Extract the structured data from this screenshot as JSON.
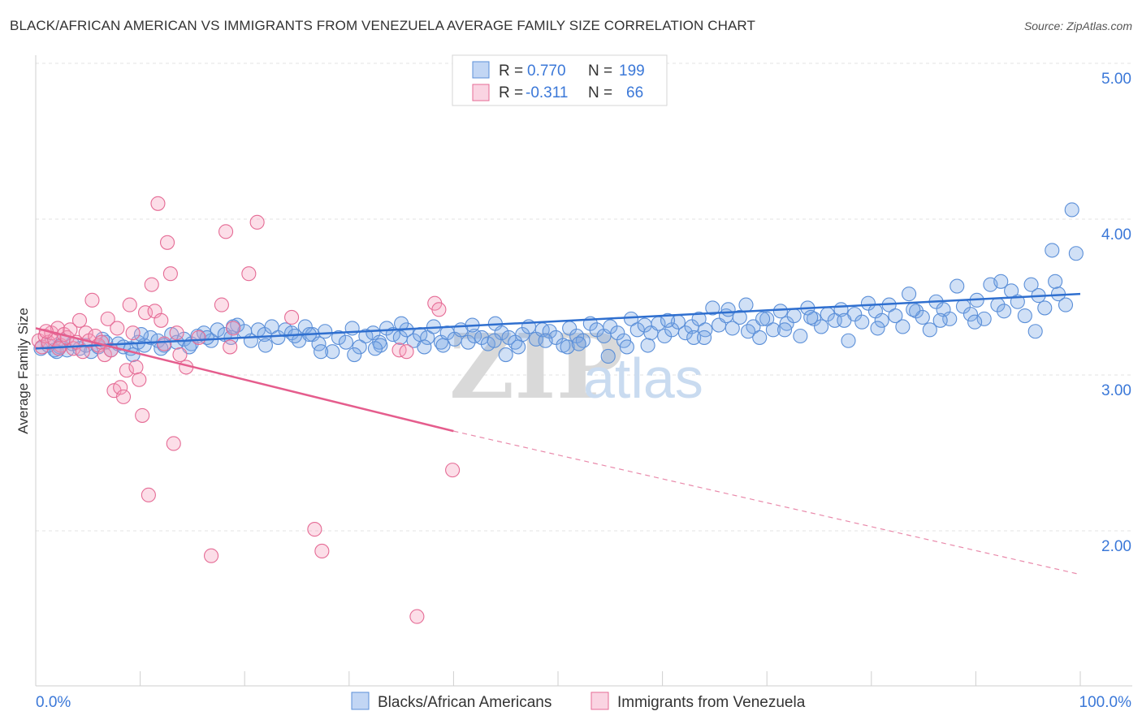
{
  "title": "BLACK/AFRICAN AMERICAN VS IMMIGRANTS FROM VENEZUELA AVERAGE FAMILY SIZE CORRELATION CHART",
  "source": "Source: ZipAtlas.com",
  "watermark": {
    "zip": "ZIP",
    "atlas": "atlas"
  },
  "legend_top": [
    {
      "r_label": "R =",
      "r_value": "0.770",
      "n_label": "N =",
      "n_value": "199"
    },
    {
      "r_label": "R =",
      "r_value": "-0.311",
      "n_label": "N =",
      "n_value": "66"
    }
  ],
  "chart_data": {
    "type": "scatter",
    "title": "BLACK/AFRICAN AMERICAN VS IMMIGRANTS FROM VENEZUELA AVERAGE FAMILY SIZE CORRELATION CHART",
    "xlabel": "",
    "ylabel": "Average Family Size",
    "x_tick_labels": [
      "0.0%",
      "100.0%"
    ],
    "y_tick_labels": [
      "2.00",
      "3.00",
      "4.00",
      "5.00"
    ],
    "xlim": [
      0,
      100
    ],
    "ylim": [
      1.05,
      5.1
    ],
    "grid": "horizontal dashed",
    "legend_position": "top-center",
    "colors": {
      "blue": "#5b8fd8",
      "blue_fill": "rgba(120,165,230,0.35)",
      "pink": "#e56b95",
      "pink_fill": "rgba(245,160,190,0.35)"
    },
    "series": [
      {
        "name": "Blacks/African Americans",
        "color": "#3a7bd5",
        "trend": {
          "x": [
            0,
            100
          ],
          "y": [
            3.17,
            3.52
          ]
        },
        "points": [
          [
            0.5,
            3.17
          ],
          [
            1.2,
            3.19
          ],
          [
            1.8,
            3.16
          ],
          [
            2.3,
            3.18
          ],
          [
            3,
            3.16
          ],
          [
            3.5,
            3.2
          ],
          [
            4.2,
            3.17
          ],
          [
            4.8,
            3.19
          ],
          [
            5.3,
            3.15
          ],
          [
            6,
            3.18
          ],
          [
            6.7,
            3.21
          ],
          [
            7.2,
            3.16
          ],
          [
            7.9,
            3.2
          ],
          [
            8.4,
            3.18
          ],
          [
            9.1,
            3.17
          ],
          [
            9.8,
            3.21
          ],
          [
            10.4,
            3.19
          ],
          [
            11,
            3.24
          ],
          [
            11.7,
            3.22
          ],
          [
            12.3,
            3.19
          ],
          [
            13,
            3.26
          ],
          [
            13.5,
            3.21
          ],
          [
            14.2,
            3.23
          ],
          [
            14.9,
            3.2
          ],
          [
            15.5,
            3.25
          ],
          [
            16.1,
            3.27
          ],
          [
            16.8,
            3.22
          ],
          [
            17.4,
            3.29
          ],
          [
            18.1,
            3.26
          ],
          [
            18.7,
            3.24
          ],
          [
            19.3,
            3.32
          ],
          [
            20,
            3.28
          ],
          [
            20.6,
            3.22
          ],
          [
            21.3,
            3.29
          ],
          [
            21.9,
            3.26
          ],
          [
            22.6,
            3.31
          ],
          [
            23.2,
            3.24
          ],
          [
            23.9,
            3.29
          ],
          [
            24.5,
            3.27
          ],
          [
            25.2,
            3.22
          ],
          [
            25.8,
            3.31
          ],
          [
            26.5,
            3.26
          ],
          [
            27.1,
            3.2
          ],
          [
            27.7,
            3.28
          ],
          [
            28.4,
            3.15
          ],
          [
            29,
            3.24
          ],
          [
            29.7,
            3.21
          ],
          [
            30.3,
            3.3
          ],
          [
            31,
            3.18
          ],
          [
            31.6,
            3.25
          ],
          [
            32.3,
            3.27
          ],
          [
            32.9,
            3.21
          ],
          [
            33.6,
            3.3
          ],
          [
            34.2,
            3.26
          ],
          [
            34.9,
            3.24
          ],
          [
            35.5,
            3.29
          ],
          [
            36.2,
            3.22
          ],
          [
            36.8,
            3.26
          ],
          [
            37.5,
            3.24
          ],
          [
            38.1,
            3.31
          ],
          [
            38.8,
            3.21
          ],
          [
            39.4,
            3.27
          ],
          [
            40.1,
            3.23
          ],
          [
            40.7,
            3.29
          ],
          [
            41.4,
            3.21
          ],
          [
            42,
            3.25
          ],
          [
            42.7,
            3.24
          ],
          [
            43.3,
            3.2
          ],
          [
            44,
            3.33
          ],
          [
            44.6,
            3.27
          ],
          [
            45.3,
            3.24
          ],
          [
            45.9,
            3.21
          ],
          [
            46.6,
            3.26
          ],
          [
            47.2,
            3.31
          ],
          [
            47.9,
            3.23
          ],
          [
            48.5,
            3.29
          ],
          [
            49.2,
            3.28
          ],
          [
            49.8,
            3.24
          ],
          [
            50.5,
            3.19
          ],
          [
            51.1,
            3.3
          ],
          [
            51.8,
            3.25
          ],
          [
            52.4,
            3.22
          ],
          [
            53.1,
            3.33
          ],
          [
            53.7,
            3.29
          ],
          [
            54.4,
            3.25
          ],
          [
            55,
            3.31
          ],
          [
            55.7,
            3.27
          ],
          [
            56.3,
            3.22
          ],
          [
            57,
            3.36
          ],
          [
            57.6,
            3.29
          ],
          [
            58.3,
            3.32
          ],
          [
            58.9,
            3.27
          ],
          [
            59.6,
            3.33
          ],
          [
            60.2,
            3.25
          ],
          [
            60.9,
            3.29
          ],
          [
            61.5,
            3.34
          ],
          [
            62.2,
            3.27
          ],
          [
            62.8,
            3.31
          ],
          [
            63.5,
            3.36
          ],
          [
            64.1,
            3.29
          ],
          [
            64.8,
            3.43
          ],
          [
            65.4,
            3.32
          ],
          [
            66.1,
            3.38
          ],
          [
            66.7,
            3.3
          ],
          [
            67.4,
            3.37
          ],
          [
            68,
            3.45
          ],
          [
            68.7,
            3.31
          ],
          [
            69.3,
            3.24
          ],
          [
            70,
            3.36
          ],
          [
            70.6,
            3.29
          ],
          [
            71.3,
            3.41
          ],
          [
            71.9,
            3.33
          ],
          [
            72.6,
            3.38
          ],
          [
            73.2,
            3.25
          ],
          [
            73.9,
            3.43
          ],
          [
            74.5,
            3.36
          ],
          [
            75.2,
            3.31
          ],
          [
            75.8,
            3.39
          ],
          [
            76.5,
            3.35
          ],
          [
            77.1,
            3.42
          ],
          [
            77.8,
            3.22
          ],
          [
            78.4,
            3.39
          ],
          [
            79.1,
            3.34
          ],
          [
            79.7,
            3.46
          ],
          [
            80.4,
            3.41
          ],
          [
            81,
            3.35
          ],
          [
            81.7,
            3.45
          ],
          [
            82.3,
            3.38
          ],
          [
            83,
            3.31
          ],
          [
            83.6,
            3.52
          ],
          [
            84.3,
            3.41
          ],
          [
            84.9,
            3.37
          ],
          [
            85.6,
            3.29
          ],
          [
            86.2,
            3.47
          ],
          [
            86.9,
            3.42
          ],
          [
            87.5,
            3.36
          ],
          [
            88.2,
            3.57
          ],
          [
            88.8,
            3.44
          ],
          [
            89.5,
            3.39
          ],
          [
            90.1,
            3.48
          ],
          [
            90.8,
            3.36
          ],
          [
            91.4,
            3.58
          ],
          [
            92.1,
            3.45
          ],
          [
            92.7,
            3.41
          ],
          [
            93.4,
            3.54
          ],
          [
            94,
            3.47
          ],
          [
            94.7,
            3.38
          ],
          [
            95.3,
            3.58
          ],
          [
            96,
            3.51
          ],
          [
            96.6,
            3.43
          ],
          [
            97.3,
            3.8
          ],
          [
            97.9,
            3.52
          ],
          [
            98.6,
            3.45
          ],
          [
            99.2,
            4.06
          ],
          [
            2.6,
            3.22
          ],
          [
            6.4,
            3.23
          ],
          [
            10.1,
            3.26
          ],
          [
            12,
            3.17
          ],
          [
            14.7,
            3.18
          ],
          [
            18.9,
            3.31
          ],
          [
            22,
            3.19
          ],
          [
            24.8,
            3.25
          ],
          [
            27.3,
            3.15
          ],
          [
            30.5,
            3.13
          ],
          [
            33,
            3.19
          ],
          [
            35,
            3.33
          ],
          [
            39,
            3.19
          ],
          [
            41.8,
            3.32
          ],
          [
            43.9,
            3.22
          ],
          [
            46.2,
            3.18
          ],
          [
            48.8,
            3.22
          ],
          [
            50.9,
            3.18
          ],
          [
            54.8,
            3.12
          ],
          [
            56.6,
            3.18
          ],
          [
            60.5,
            3.35
          ],
          [
            63,
            3.24
          ],
          [
            66.3,
            3.42
          ],
          [
            69.6,
            3.36
          ],
          [
            71.7,
            3.29
          ],
          [
            74.2,
            3.37
          ],
          [
            77.4,
            3.35
          ],
          [
            80.6,
            3.3
          ],
          [
            84,
            3.42
          ],
          [
            86.6,
            3.35
          ],
          [
            89.9,
            3.34
          ],
          [
            92.4,
            3.6
          ],
          [
            95.7,
            3.28
          ],
          [
            97.6,
            3.6
          ],
          [
            99.6,
            3.78
          ],
          [
            2,
            3.15
          ],
          [
            9.3,
            3.13
          ],
          [
            16.4,
            3.24
          ],
          [
            26.2,
            3.26
          ],
          [
            32.5,
            3.17
          ],
          [
            37.2,
            3.18
          ],
          [
            45,
            3.13
          ],
          [
            52,
            3.2
          ],
          [
            58.6,
            3.19
          ],
          [
            64,
            3.24
          ],
          [
            68.2,
            3.28
          ]
        ]
      },
      {
        "name": "Immigrants from Venezuela",
        "color": "#e86b96",
        "trend": {
          "x": [
            0,
            40
          ],
          "y": [
            3.3,
            2.64
          ],
          "dashed_to": {
            "x": [
              40,
              100
            ],
            "y": [
              2.64,
              1.72
            ]
          }
        },
        "points": [
          [
            0.3,
            3.22
          ],
          [
            0.6,
            3.18
          ],
          [
            0.9,
            3.25
          ],
          [
            1.2,
            3.21
          ],
          [
            1.5,
            3.27
          ],
          [
            1.8,
            3.23
          ],
          [
            2.1,
            3.3
          ],
          [
            2.4,
            3.19
          ],
          [
            2.7,
            3.26
          ],
          [
            3,
            3.24
          ],
          [
            3.3,
            3.29
          ],
          [
            3.6,
            3.17
          ],
          [
            3.9,
            3.21
          ],
          [
            4.2,
            3.35
          ],
          [
            4.5,
            3.15
          ],
          [
            4.8,
            3.27
          ],
          [
            5.1,
            3.22
          ],
          [
            5.4,
            3.48
          ],
          [
            5.7,
            3.25
          ],
          [
            6,
            3.19
          ],
          [
            6.3,
            3.21
          ],
          [
            6.6,
            3.13
          ],
          [
            6.9,
            3.36
          ],
          [
            7.2,
            3.16
          ],
          [
            7.5,
            2.9
          ],
          [
            7.8,
            3.3
          ],
          [
            8.1,
            2.92
          ],
          [
            8.4,
            2.86
          ],
          [
            8.7,
            3.03
          ],
          [
            9.0,
            3.45
          ],
          [
            9.3,
            3.27
          ],
          [
            9.6,
            3.05
          ],
          [
            9.9,
            2.97
          ],
          [
            10.2,
            2.74
          ],
          [
            10.5,
            3.4
          ],
          [
            10.8,
            2.23
          ],
          [
            11.1,
            3.58
          ],
          [
            11.4,
            3.41
          ],
          [
            11.7,
            4.1
          ],
          [
            12,
            3.35
          ],
          [
            12.3,
            3.2
          ],
          [
            12.6,
            3.85
          ],
          [
            12.9,
            3.65
          ],
          [
            13.2,
            2.56
          ],
          [
            13.5,
            3.27
          ],
          [
            13.8,
            3.13
          ],
          [
            14.4,
            3.05
          ],
          [
            15.6,
            3.24
          ],
          [
            16.8,
            1.84
          ],
          [
            17.8,
            3.45
          ],
          [
            18.2,
            3.92
          ],
          [
            18.6,
            3.18
          ],
          [
            18.9,
            3.3
          ],
          [
            20.4,
            3.65
          ],
          [
            21.2,
            3.98
          ],
          [
            24.5,
            3.37
          ],
          [
            26.7,
            2.01
          ],
          [
            27.4,
            1.87
          ],
          [
            34.8,
            3.16
          ],
          [
            35.5,
            3.15
          ],
          [
            36.5,
            1.45
          ],
          [
            38.2,
            3.46
          ],
          [
            38.6,
            3.42
          ],
          [
            39.9,
            2.39
          ],
          [
            1.0,
            3.28
          ],
          [
            2.2,
            3.17
          ]
        ]
      }
    ]
  },
  "bottom_legend": [
    {
      "label": "Blacks/African Americans"
    },
    {
      "label": "Immigrants from Venezuela"
    }
  ]
}
